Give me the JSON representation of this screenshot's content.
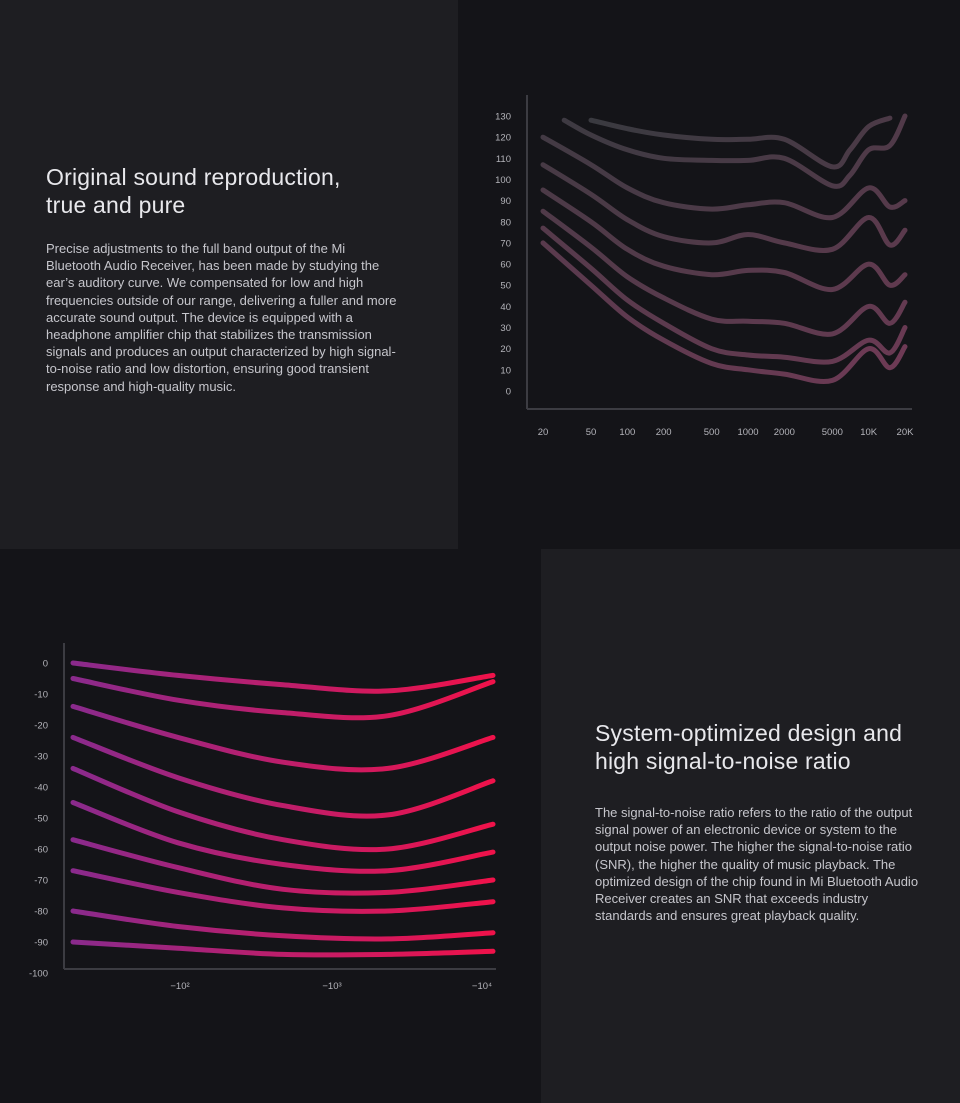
{
  "section1": {
    "heading_line1": "Original sound reproduction,",
    "heading_line2": "true and pure",
    "body": "Precise adjustments to the full band output of the Mi Bluetooth Audio Receiver, has been made by studying the ear’s auditory curve. We compensated for low and high frequencies outside of our range, delivering a fuller and more accurate sound output. The device is equipped with a headphone amplifier chip that stabilizes the transmission signals and produces an output characterized by high signal-to-noise ratio and low distortion, ensuring good transient response and high-quality music."
  },
  "section2": {
    "heading_line1": "System-optimized design and",
    "heading_line2": "high signal-to-noise ratio",
    "body": "The signal-to-noise ratio refers to the ratio of the output signal power of an electronic device or system to the output noise power. The higher the signal-to-noise ratio (SNR), the higher the quality of music playback. The optimized design of the chip found in Mi Bluetooth Audio Receiver creates an SNR that exceeds industry standards and ensures great playback quality."
  },
  "colors": {
    "page_background": "#141418",
    "panel_background": "#1e1e22",
    "curve1_dark": "#3a3a40",
    "curve1_accent": "#6e3a55",
    "curve2_start": "#8a2a8c",
    "curve2_end": "#f0124a"
  },
  "chart_data": [
    {
      "type": "line",
      "x_scale": "log",
      "x_ticks": [
        "20",
        "50",
        "100",
        "200",
        "500",
        "1000",
        "2000",
        "5000",
        "10K",
        "20K"
      ],
      "y_ticks": [
        "130",
        "120",
        "110",
        "100",
        "90",
        "80",
        "70",
        "60",
        "50",
        "40",
        "30",
        "20",
        "10",
        "0"
      ],
      "ylim": [
        0,
        130
      ],
      "series": [
        {
          "x": [
            50,
            100,
            200,
            500,
            1000,
            2000,
            5000,
            7000,
            10000,
            15000
          ],
          "y": [
            128,
            124,
            121,
            119,
            119,
            119,
            106,
            114,
            125,
            129
          ]
        },
        {
          "x": [
            30,
            50,
            100,
            200,
            500,
            1000,
            2000,
            5000,
            7000,
            10000,
            15000,
            20000
          ],
          "y": [
            128,
            121,
            114,
            110,
            109,
            109,
            110,
            97,
            102,
            114,
            116,
            130
          ]
        },
        {
          "x": [
            20,
            50,
            100,
            200,
            500,
            1000,
            2000,
            5000,
            10000,
            15000,
            20000
          ],
          "y": [
            120,
            107,
            96,
            89,
            86,
            88,
            89,
            82,
            96,
            87,
            90
          ]
        },
        {
          "x": [
            20,
            50,
            100,
            200,
            500,
            1000,
            2000,
            5000,
            10000,
            15000,
            20000
          ],
          "y": [
            107,
            93,
            81,
            73,
            70,
            74,
            70,
            67,
            82,
            69,
            76
          ]
        },
        {
          "x": [
            20,
            50,
            100,
            200,
            500,
            1000,
            2000,
            5000,
            10000,
            15000,
            20000
          ],
          "y": [
            95,
            80,
            67,
            59,
            55,
            57,
            56,
            48,
            60,
            50,
            55
          ]
        },
        {
          "x": [
            20,
            50,
            100,
            200,
            500,
            1000,
            2000,
            5000,
            10000,
            15000,
            20000
          ],
          "y": [
            85,
            68,
            54,
            44,
            34,
            33,
            32,
            27,
            40,
            32,
            42
          ]
        },
        {
          "x": [
            20,
            50,
            100,
            200,
            500,
            1000,
            2000,
            5000,
            10000,
            15000,
            20000
          ],
          "y": [
            77,
            58,
            43,
            32,
            20,
            17,
            16,
            14,
            24,
            18,
            30
          ]
        },
        {
          "x": [
            20,
            50,
            100,
            200,
            500,
            1000,
            2000,
            5000,
            10000,
            15000,
            20000
          ],
          "y": [
            70,
            50,
            35,
            24,
            13,
            10,
            8,
            5,
            20,
            11,
            21
          ]
        }
      ]
    },
    {
      "type": "line",
      "x_ticks": [
        "−10²",
        "−10³",
        "−10⁴"
      ],
      "y_ticks": [
        "0",
        "-10",
        "-20",
        "-30",
        "-40",
        "-50",
        "-60",
        "-70",
        "-80",
        "-90",
        "-100"
      ],
      "ylim": [
        -100,
        0
      ],
      "series": [
        {
          "y": [
            0,
            -4,
            -7,
            -9,
            -4
          ]
        },
        {
          "y": [
            -5,
            -12,
            -16,
            -17,
            -6
          ]
        },
        {
          "y": [
            -14,
            -24,
            -32,
            -34,
            -24
          ]
        },
        {
          "y": [
            -24,
            -37,
            -46,
            -49,
            -38
          ]
        },
        {
          "y": [
            -34,
            -48,
            -57,
            -60,
            -52
          ]
        },
        {
          "y": [
            -45,
            -58,
            -65,
            -67,
            -61
          ]
        },
        {
          "y": [
            -57,
            -66,
            -73,
            -74,
            -70
          ]
        },
        {
          "y": [
            -67,
            -74,
            -79,
            -80,
            -77
          ]
        },
        {
          "y": [
            -80,
            -85,
            -88,
            -89,
            -87
          ]
        },
        {
          "y": [
            -90,
            -92,
            -94,
            -94,
            -93
          ]
        }
      ]
    }
  ]
}
